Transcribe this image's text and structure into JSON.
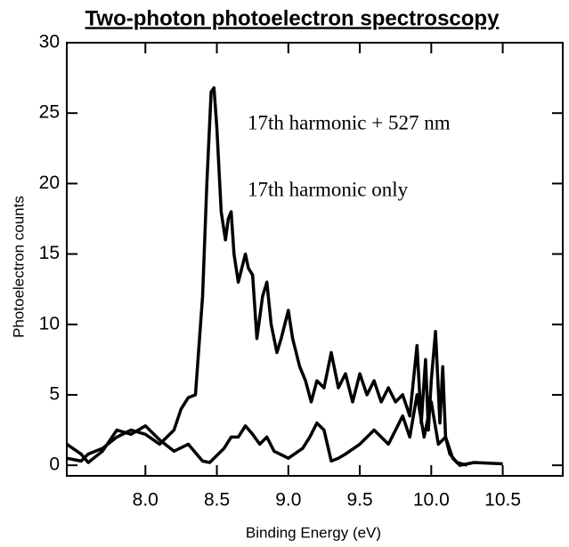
{
  "chart_data": {
    "type": "line",
    "title": "Two-photon photoelectron spectroscopy",
    "x_label": "Binding Energy (eV)",
    "y_label": "Photoelectron counts",
    "xlim": [
      7.45,
      10.92
    ],
    "ylim": [
      -0.75,
      30
    ],
    "xticks": [
      {
        "value": 8,
        "label": "8.0"
      },
      8.5,
      {
        "value": 9,
        "label": "9.0"
      },
      9.5,
      {
        "value": 10,
        "label": "10.0"
      },
      10.5
    ],
    "yticks": [
      0,
      5,
      10,
      15,
      20,
      25,
      30
    ],
    "series": [
      {
        "name": "17th harmonic + 527 nm",
        "color": "#000000",
        "x": [
          7.45,
          7.55,
          7.6,
          7.7,
          7.8,
          7.9,
          8.0,
          8.1,
          8.2,
          8.25,
          8.3,
          8.35,
          8.4,
          8.43,
          8.46,
          8.48,
          8.5,
          8.53,
          8.56,
          8.58,
          8.6,
          8.62,
          8.65,
          8.7,
          8.72,
          8.75,
          8.78,
          8.82,
          8.85,
          8.88,
          8.92,
          8.95,
          9.0,
          9.03,
          9.08,
          9.12,
          9.16,
          9.2,
          9.25,
          9.3,
          9.35,
          9.4,
          9.45,
          9.5,
          9.55,
          9.6,
          9.65,
          9.7,
          9.75,
          9.8,
          9.85,
          9.9,
          9.93,
          9.96,
          9.98,
          10.0,
          10.03,
          10.06,
          10.08,
          10.1,
          10.13,
          10.18,
          10.25
        ],
        "values": [
          0.5,
          0.3,
          0.8,
          1.2,
          2.0,
          2.5,
          2.2,
          1.5,
          2.5,
          4.0,
          4.8,
          5.0,
          12,
          20,
          26.5,
          26.8,
          24,
          18,
          16,
          17.5,
          18,
          15,
          13,
          15,
          14,
          13.5,
          9,
          12,
          13,
          10,
          8,
          9,
          11,
          9,
          7,
          6,
          4.5,
          6,
          5.5,
          8,
          5.5,
          6.5,
          4.5,
          6.5,
          5,
          6,
          4.5,
          5.5,
          4.5,
          5,
          3.5,
          8.5,
          3,
          7.5,
          2.5,
          6,
          9.5,
          3,
          7,
          2,
          0.8,
          0.2,
          0
        ]
      },
      {
        "name": "17th harmonic only",
        "color": "#000000",
        "x": [
          7.45,
          7.55,
          7.6,
          7.7,
          7.8,
          7.9,
          8.0,
          8.05,
          8.1,
          8.2,
          8.3,
          8.4,
          8.45,
          8.55,
          8.6,
          8.65,
          8.7,
          8.75,
          8.8,
          8.85,
          8.9,
          9.0,
          9.1,
          9.15,
          9.2,
          9.25,
          9.3,
          9.35,
          9.4,
          9.5,
          9.6,
          9.65,
          9.7,
          9.8,
          9.85,
          9.9,
          9.95,
          10.0,
          10.05,
          10.1,
          10.15,
          10.2,
          10.3,
          10.5
        ],
        "values": [
          1.5,
          0.8,
          0.2,
          1.0,
          2.5,
          2.2,
          2.8,
          2.3,
          1.8,
          1.0,
          1.5,
          0.3,
          0.2,
          1.2,
          2.0,
          2.0,
          2.8,
          2.2,
          1.5,
          2.0,
          1.0,
          0.5,
          1.2,
          2.0,
          3.0,
          2.5,
          0.3,
          0.5,
          0.8,
          1.5,
          2.5,
          2.0,
          1.5,
          3.5,
          2.0,
          5,
          2,
          4.5,
          1.5,
          2.0,
          0.5,
          0,
          0.2,
          0.1
        ]
      }
    ]
  }
}
